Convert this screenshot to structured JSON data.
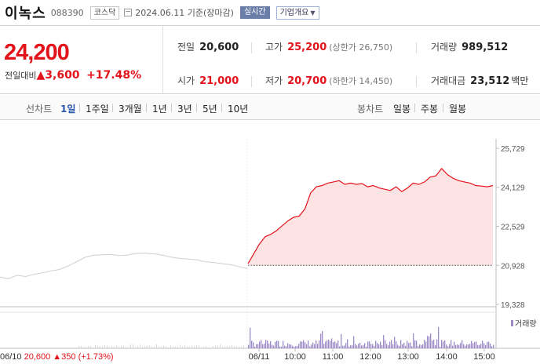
{
  "header": {
    "name": "이녹스",
    "code": "088390",
    "market_tag": "코스닥",
    "date_text": "2024.06.11 기준(장마감)",
    "realtime_label": "실시간",
    "company_label": "기업개요"
  },
  "price": {
    "current": "24,200",
    "diff_label": "전일대비",
    "diff_arrow": "▲",
    "diff_value": "3,600",
    "diff_rate": "+17.48%"
  },
  "stats": {
    "prev_close_label": "전일",
    "prev_close": "20,600",
    "high_label": "고가",
    "high": "25,200",
    "upper_limit": "(상한가 26,750)",
    "volume_label": "거래량",
    "volume": "989,512",
    "open_label": "시가",
    "open": "21,000",
    "low_label": "저가",
    "low": "20,700",
    "lower_limit": "(하한가 14,450)",
    "amount_label": "거래대금",
    "amount": "23,512",
    "amount_unit": "백만"
  },
  "periods": {
    "line_label": "선차트",
    "line_items": [
      "1일",
      "1주일",
      "3개월",
      "1년",
      "3년",
      "5년",
      "10년"
    ],
    "active": "1일",
    "candle_label": "봉차트",
    "candle_items": [
      "일봉",
      "주봉",
      "월봉"
    ]
  },
  "colors": {
    "up": "#e3131b",
    "fill": "#fde3e4",
    "prev_day_line": "#cfcfcf",
    "volume": "#9b8cc9",
    "realtime": "#6b7ea8"
  },
  "chart_data": {
    "type": "line",
    "y_ticks": [
      "25,729",
      "24,129",
      "22,529",
      "20,928",
      "19,328"
    ],
    "ylim": [
      19328,
      25729
    ],
    "base_price": 20928,
    "x_ticks": [
      "06/10",
      "06/11",
      "10:00",
      "11:00",
      "12:00",
      "13:00",
      "14:00",
      "15:00"
    ],
    "prev_day_values": [
      20450,
      20380,
      20520,
      20470,
      20560,
      20620,
      20700,
      20760,
      20900,
      21080,
      21260,
      21340,
      21360,
      21380,
      21330,
      21350,
      21420,
      21430,
      21400,
      21350,
      21270,
      21220,
      21190,
      21160,
      21080,
      21050,
      21000,
      20960,
      20880,
      20800
    ],
    "today_values": [
      21000,
      21400,
      21800,
      22100,
      22200,
      22350,
      22550,
      22750,
      22900,
      22950,
      23250,
      23900,
      24150,
      24200,
      24300,
      24350,
      24400,
      24250,
      24300,
      24250,
      24280,
      24150,
      24200,
      24100,
      24050,
      24000,
      24150,
      23950,
      24100,
      24300,
      24250,
      24350,
      24550,
      24600,
      24900,
      24650,
      24500,
      24400,
      24350,
      24300,
      24200,
      24180,
      24150,
      24200
    ],
    "volume_label": "거래량",
    "prev_day_footer": "06/10  20,600 ▲350 (+1.73%)",
    "prev_day_footer_date": "06/10",
    "prev_day_footer_price": "20,600",
    "prev_day_footer_change": "▲350 (+1.73%)"
  }
}
